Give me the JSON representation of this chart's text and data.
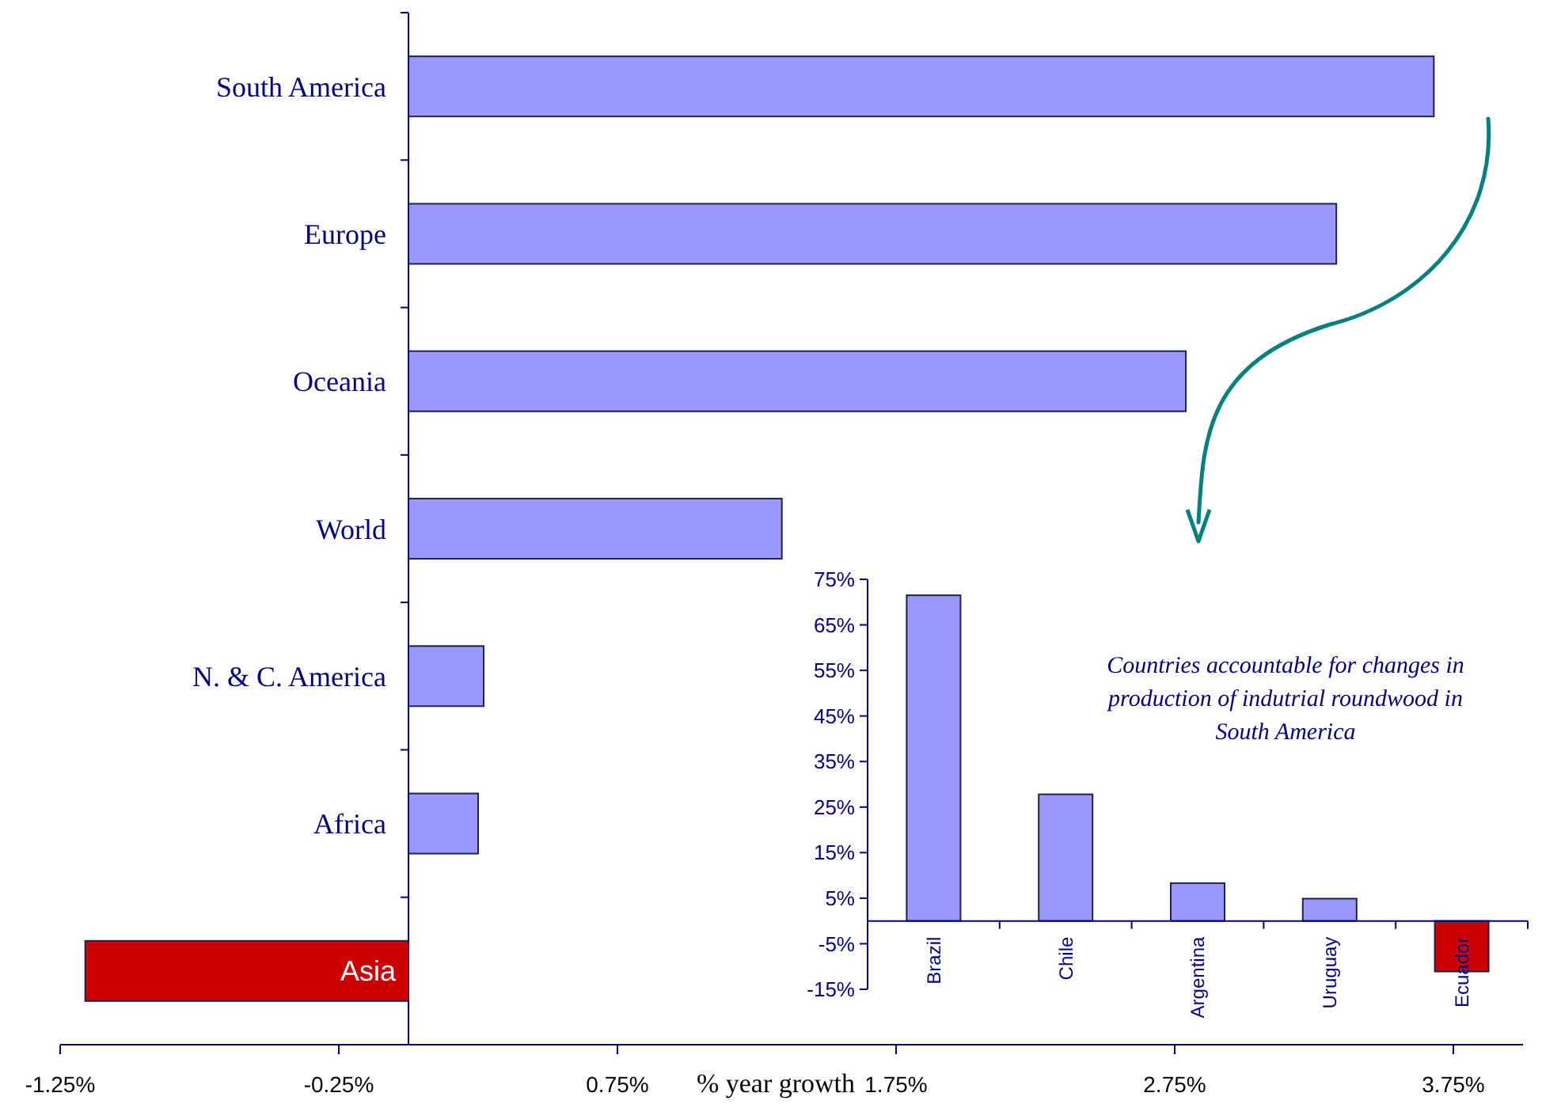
{
  "chart_data": [
    {
      "type": "bar",
      "orientation": "horizontal",
      "xlabel": "% year growth",
      "categories": [
        "South America",
        "Europe",
        "Oceania",
        "World",
        "N. & C. America",
        "Africa",
        "Asia"
      ],
      "values": [
        3.68,
        3.33,
        2.79,
        1.34,
        0.27,
        0.25,
        -1.16
      ],
      "colors": [
        "#9999ff",
        "#9999ff",
        "#9999ff",
        "#9999ff",
        "#9999ff",
        "#9999ff",
        "#cc0000"
      ],
      "xlim": [
        -1.25,
        4
      ],
      "xticks": [
        {
          "value": -1.25,
          "label": "-1.25%"
        },
        {
          "value": -0.25,
          "label": "-0.25%"
        },
        {
          "value": 0.75,
          "label": "0.75%"
        },
        {
          "value": 1.75,
          "label": "1.75%"
        },
        {
          "value": 2.75,
          "label": "2.75%"
        },
        {
          "value": 3.75,
          "label": "3.75%"
        }
      ],
      "grid": false
    },
    {
      "type": "bar",
      "title": "Countries accountable for changes in production of indutrial  roundwood in South America",
      "categories": [
        "Brazil",
        "Chile",
        "Argentina",
        "Uruguay",
        "Ecuador"
      ],
      "values": [
        71.5,
        27.8,
        8.3,
        4.9,
        -11.1
      ],
      "colors": [
        "#9999ff",
        "#9999ff",
        "#9999ff",
        "#9999ff",
        "#cc0000"
      ],
      "ylim": [
        -15,
        75
      ],
      "yticks": [
        {
          "value": -15,
          "label": "-15%"
        },
        {
          "value": -5,
          "label": "-5%"
        },
        {
          "value": 5,
          "label": "5%"
        },
        {
          "value": 15,
          "label": "15%"
        },
        {
          "value": 25,
          "label": "25%"
        },
        {
          "value": 35,
          "label": "35%"
        },
        {
          "value": 45,
          "label": "45%"
        },
        {
          "value": 55,
          "label": "55%"
        },
        {
          "value": 65,
          "label": "65%"
        },
        {
          "value": 75,
          "label": "75%"
        }
      ]
    }
  ]
}
